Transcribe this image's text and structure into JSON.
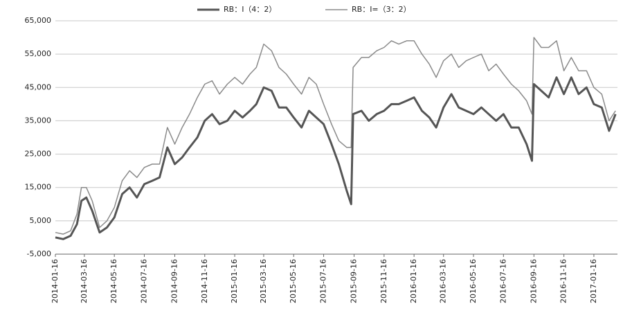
{
  "chart_data": {
    "type": "line",
    "x": [
      "2014-01-16",
      "2014-02-01",
      "2014-02-16",
      "2014-03-01",
      "2014-03-10",
      "2014-03-20",
      "2014-04-01",
      "2014-04-16",
      "2014-05-01",
      "2014-05-16",
      "2014-06-01",
      "2014-06-16",
      "2014-07-01",
      "2014-07-16",
      "2014-08-01",
      "2014-08-16",
      "2014-09-01",
      "2014-09-16",
      "2014-10-01",
      "2014-10-16",
      "2014-11-01",
      "2014-11-16",
      "2014-12-01",
      "2014-12-16",
      "2015-01-01",
      "2015-01-16",
      "2015-02-01",
      "2015-02-16",
      "2015-03-01",
      "2015-03-16",
      "2015-04-01",
      "2015-04-16",
      "2015-05-01",
      "2015-05-16",
      "2015-06-01",
      "2015-06-16",
      "2015-07-01",
      "2015-07-16",
      "2015-08-01",
      "2015-08-16",
      "2015-09-01",
      "2015-09-10",
      "2015-09-14",
      "2015-10-01",
      "2015-10-16",
      "2015-11-01",
      "2015-11-16",
      "2015-12-01",
      "2015-12-16",
      "2016-01-01",
      "2016-01-16",
      "2016-02-01",
      "2016-02-16",
      "2016-03-01",
      "2016-03-16",
      "2016-04-01",
      "2016-04-16",
      "2016-05-01",
      "2016-05-16",
      "2016-06-01",
      "2016-06-16",
      "2016-07-01",
      "2016-07-16",
      "2016-08-01",
      "2016-08-16",
      "2016-09-01",
      "2016-09-12",
      "2016-09-16",
      "2016-10-01",
      "2016-10-16",
      "2016-11-01",
      "2016-11-16",
      "2016-12-01",
      "2016-12-16",
      "2017-01-01",
      "2017-01-16",
      "2017-02-01",
      "2017-02-16",
      "2017-03-01"
    ],
    "series": [
      {
        "name": "RB：I（4：2）",
        "color": "#555555",
        "values": [
          0,
          -500,
          500,
          4000,
          11000,
          12000,
          8000,
          1500,
          3000,
          6000,
          13000,
          15000,
          12000,
          16000,
          17000,
          18000,
          27000,
          22000,
          24000,
          27000,
          30000,
          35000,
          37000,
          34000,
          35000,
          38000,
          36000,
          38000,
          40000,
          45000,
          44000,
          39000,
          39000,
          36000,
          33000,
          38000,
          36000,
          34000,
          28000,
          22000,
          14000,
          10000,
          37000,
          38000,
          35000,
          37000,
          38000,
          40000,
          40000,
          41000,
          42000,
          38000,
          36000,
          33000,
          39000,
          43000,
          39000,
          38000,
          37000,
          39000,
          37000,
          35000,
          37000,
          33000,
          33000,
          28000,
          23000,
          46000,
          44000,
          42000,
          48000,
          43000,
          48000,
          43000,
          45000,
          40000,
          39000,
          32000,
          37000
        ]
      },
      {
        "name": "RB：I=（3：2）",
        "color": "#8a8a8a",
        "values": [
          1500,
          1000,
          2000,
          7000,
          15000,
          15000,
          11000,
          3000,
          5000,
          9000,
          17000,
          20000,
          18000,
          21000,
          22000,
          22000,
          33000,
          28000,
          33000,
          37000,
          42000,
          46000,
          47000,
          43000,
          46000,
          48000,
          46000,
          49000,
          51000,
          58000,
          56000,
          51000,
          49000,
          46000,
          43000,
          48000,
          46000,
          40000,
          34000,
          29000,
          27000,
          27000,
          51000,
          54000,
          54000,
          56000,
          57000,
          59000,
          58000,
          59000,
          59000,
          55000,
          52000,
          48000,
          53000,
          55000,
          51000,
          53000,
          54000,
          55000,
          50000,
          52000,
          49000,
          46000,
          44000,
          41000,
          37000,
          60000,
          57000,
          57000,
          59000,
          50000,
          54000,
          50000,
          50000,
          45000,
          43000,
          35000,
          38000
        ]
      }
    ],
    "xlim": [
      "2014-01-16",
      "2017-03-05"
    ],
    "xticks": [
      "2014-01-16",
      "2014-03-16",
      "2014-05-16",
      "2014-07-16",
      "2014-09-16",
      "2014-11-16",
      "2015-01-16",
      "2015-03-16",
      "2015-05-16",
      "2015-07-16",
      "2015-09-16",
      "2015-11-16",
      "2016-01-16",
      "2016-03-16",
      "2016-05-16",
      "2016-07-16",
      "2016-09-16",
      "2016-11-16",
      "2017-01-16"
    ],
    "ylim": [
      -5000,
      65000
    ],
    "yticks": [
      {
        "value": -5000,
        "label": "-5,000"
      },
      {
        "value": 5000,
        "label": "5,000"
      },
      {
        "value": 15000,
        "label": "15,000"
      },
      {
        "value": 25000,
        "label": "25,000"
      },
      {
        "value": 35000,
        "label": "35,000"
      },
      {
        "value": 45000,
        "label": "45,000"
      },
      {
        "value": 55000,
        "label": "55,000"
      },
      {
        "value": 65000,
        "label": "65,000"
      }
    ],
    "grid": true
  }
}
